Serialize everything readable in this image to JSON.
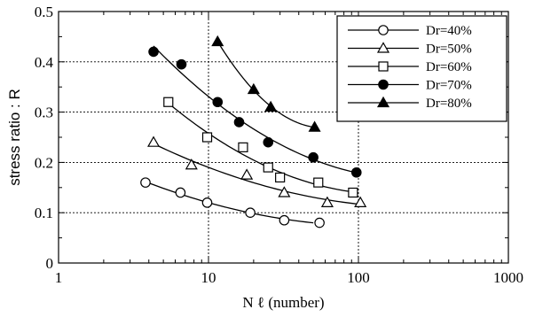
{
  "chart_data": {
    "type": "scatter",
    "x_scale": "log",
    "xlabel": "N ℓ (number)",
    "ylabel": "stress ratio : R",
    "xlim": [
      1,
      1000
    ],
    "ylim": [
      0,
      0.5
    ],
    "x_ticks": [
      1,
      10,
      100,
      1000
    ],
    "x_tick_labels": [
      "1",
      "10",
      "100",
      "1000"
    ],
    "y_ticks": [
      0,
      0.1,
      0.2,
      0.3,
      0.4,
      0.5
    ],
    "y_tick_labels": [
      "0",
      "0.1",
      "0.2",
      "0.3",
      "0.4",
      "0.5"
    ],
    "grid": true,
    "legend_position": "top-right",
    "series": [
      {
        "name": "Dr=40%",
        "marker": "open-circle",
        "x": [
          3.8,
          6.5,
          9.8,
          19,
          32,
          55
        ],
        "y": [
          0.16,
          0.14,
          0.12,
          0.1,
          0.085,
          0.08
        ],
        "fit_x": [
          3.8,
          50
        ]
      },
      {
        "name": "Dr=50%",
        "marker": "open-triangle",
        "x": [
          4.3,
          7.7,
          18,
          32,
          62,
          103
        ],
        "y": [
          0.24,
          0.195,
          0.175,
          0.14,
          0.12,
          0.12
        ],
        "fit_x": [
          4.2,
          100
        ]
      },
      {
        "name": "Dr=60%",
        "marker": "open-square",
        "x": [
          5.4,
          9.8,
          17,
          25,
          30,
          54,
          92
        ],
        "y": [
          0.32,
          0.25,
          0.23,
          0.19,
          0.17,
          0.16,
          0.14
        ],
        "fit_x": [
          5.4,
          92
        ]
      },
      {
        "name": "Dr=70%",
        "marker": "filled-circle",
        "x": [
          4.3,
          6.6,
          11.5,
          16,
          25,
          50,
          97
        ],
        "y": [
          0.42,
          0.395,
          0.32,
          0.28,
          0.24,
          0.21,
          0.18
        ],
        "fit_x": [
          4.3,
          97
        ]
      },
      {
        "name": "Dr=80%",
        "marker": "filled-triangle",
        "x": [
          11.5,
          20,
          26,
          51
        ],
        "y": [
          0.44,
          0.345,
          0.31,
          0.27
        ],
        "fit_x": [
          11.5,
          51
        ]
      }
    ]
  }
}
